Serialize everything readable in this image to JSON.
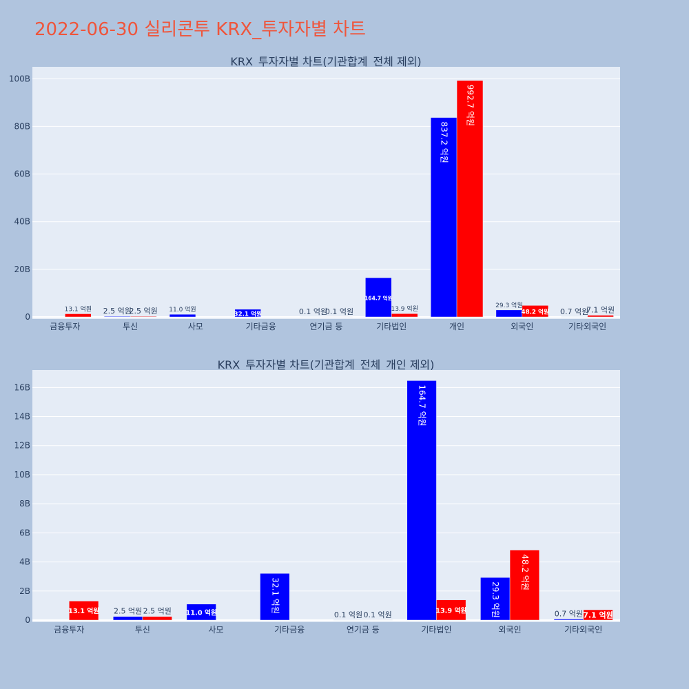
{
  "page_title": "2022-06-30 실리콘투 KRX_투자자별 차트",
  "colors": {
    "background": "#b0c4de",
    "plot_bg": "#e5ecf6",
    "title": "#ef553b",
    "blue": "#0000ff",
    "red": "#ff0000",
    "text": "#2a3f5f"
  },
  "chart_data": [
    {
      "type": "bar",
      "title": "KRX_투자자별 차트(기관합계_전체 제외)",
      "categories": [
        "금융투자",
        "투신",
        "사모",
        "기타금융",
        "연기금 등",
        "기타법인",
        "개인",
        "외국인",
        "기타외국인"
      ],
      "series": [
        {
          "color": "#0000ff",
          "values": [
            0,
            0.25,
            1.1,
            3.21,
            0.01,
            16.47,
            83.72,
            2.93,
            0.07
          ],
          "labels": [
            "",
            "2.5 억원",
            "11.0 억원",
            "32.1 억원",
            "0.1 억원",
            "164.7 억원",
            "837.2 억원",
            "29.3 억원",
            "0.7 억원"
          ]
        },
        {
          "color": "#ff0000",
          "values": [
            1.31,
            0.25,
            0,
            0,
            0.01,
            1.39,
            99.27,
            4.82,
            0.71
          ],
          "labels": [
            "13.1 억원",
            "2.5 억원",
            "",
            "",
            "0.1 억원",
            "13.9 억원",
            "992.7 억원",
            "48.2 억원",
            "7.1 억원"
          ]
        }
      ],
      "yticks": [
        "0",
        "20B",
        "40B",
        "60B",
        "80B",
        "100B"
      ],
      "ytick_values": [
        0,
        20,
        40,
        60,
        80,
        100
      ],
      "ylim": [
        0,
        105
      ],
      "grid": true
    },
    {
      "type": "bar",
      "title": "KRX_투자자별 차트(기관합계_전체_개인 제외)",
      "categories": [
        "금융투자",
        "투신",
        "사모",
        "기타금융",
        "연기금 등",
        "기타법인",
        "외국인",
        "기타외국인"
      ],
      "series": [
        {
          "color": "#0000ff",
          "values": [
            0,
            0.25,
            1.1,
            3.21,
            0.01,
            16.47,
            2.93,
            0.07
          ],
          "labels": [
            "",
            "2.5 억원",
            "11.0 억원",
            "32.1 억원",
            "0.1 억원",
            "164.7 억원",
            "29.3 억원",
            "0.7 억원"
          ]
        },
        {
          "color": "#ff0000",
          "values": [
            1.31,
            0.25,
            0,
            0,
            0.01,
            1.39,
            4.82,
            0.71
          ],
          "labels": [
            "13.1 억원",
            "2.5 억원",
            "",
            "",
            "0.1 억원",
            "13.9 억원",
            "48.2 억원",
            "7.1 억원"
          ]
        }
      ],
      "yticks": [
        "0",
        "2B",
        "4B",
        "6B",
        "8B",
        "10B",
        "12B",
        "14B",
        "16B"
      ],
      "ytick_values": [
        0,
        2,
        4,
        6,
        8,
        10,
        12,
        14,
        16
      ],
      "ylim": [
        0,
        17.2
      ],
      "grid": true
    }
  ]
}
